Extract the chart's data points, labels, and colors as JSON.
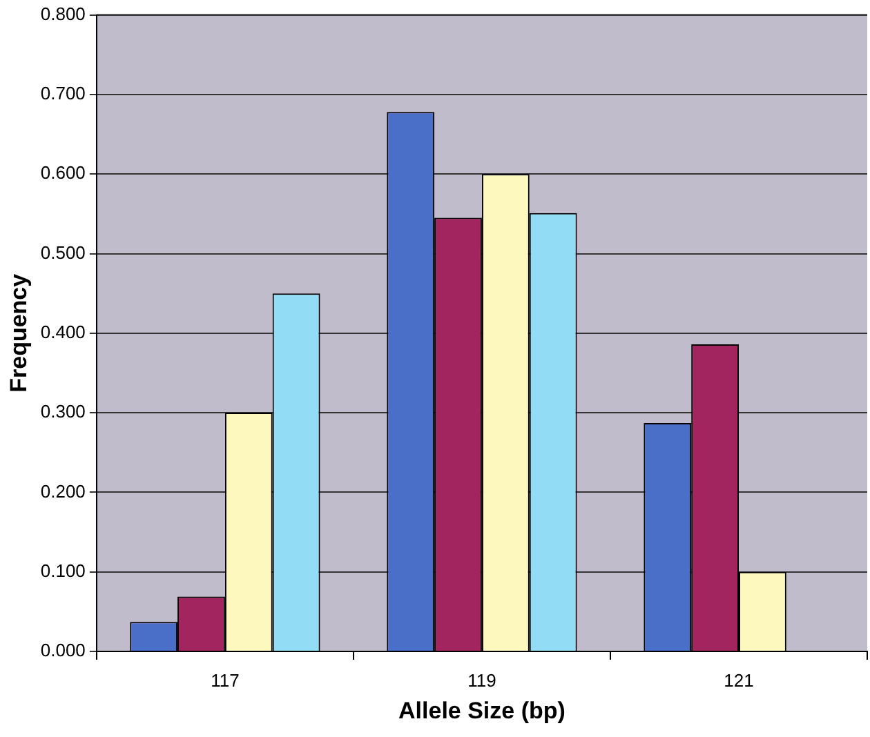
{
  "chart_data": {
    "type": "bar",
    "xlabel": "Allele Size (bp)",
    "ylabel": "Frequency",
    "categories": [
      "117",
      "119",
      "121"
    ],
    "series": [
      {
        "color": "#4a6fc8",
        "values": [
          0.037,
          0.678,
          0.287
        ]
      },
      {
        "color": "#a3255f",
        "values": [
          0.069,
          0.545,
          0.386
        ]
      },
      {
        "color": "#fdf8bd",
        "values": [
          0.3,
          0.6,
          0.1
        ]
      },
      {
        "color": "#93dcf5",
        "values": [
          0.45,
          0.551,
          null
        ]
      }
    ],
    "ylim": [
      0,
      0.8
    ],
    "yticks": [
      {
        "value": 0,
        "label": "0.000"
      },
      {
        "value": 0.1,
        "label": "0.100"
      },
      {
        "value": 0.2,
        "label": "0.200"
      },
      {
        "value": 0.3,
        "label": "0.300"
      },
      {
        "value": 0.4,
        "label": "0.400"
      },
      {
        "value": 0.5,
        "label": "0.500"
      },
      {
        "value": 0.6,
        "label": "0.600"
      },
      {
        "value": 0.7,
        "label": "0.700"
      },
      {
        "value": 0.8,
        "label": "0.800"
      }
    ],
    "grid": "y",
    "legend": false
  }
}
